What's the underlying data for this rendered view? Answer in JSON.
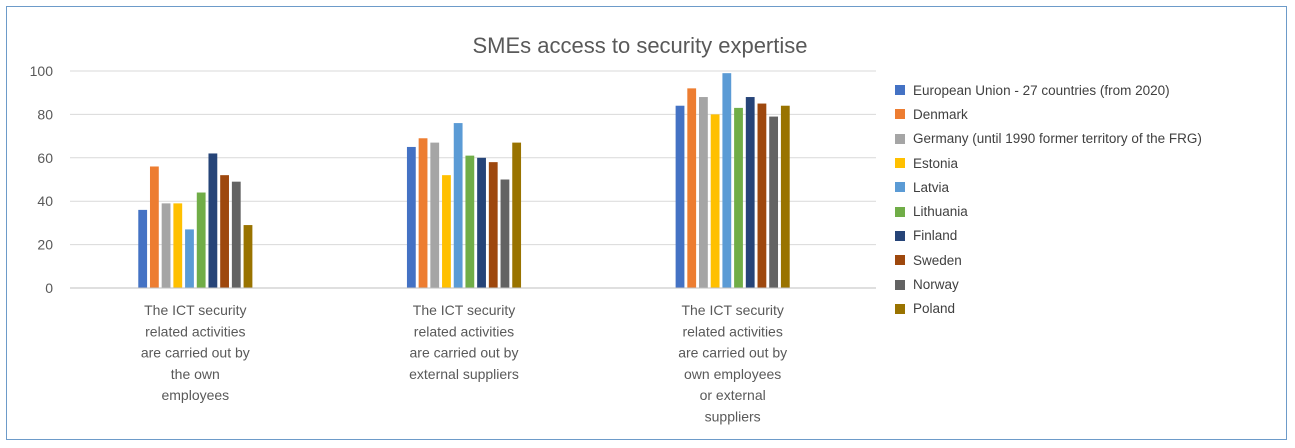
{
  "chart_data": {
    "type": "bar",
    "title": "SMEs access to security expertise",
    "xlabel": "",
    "ylabel": "",
    "ylim": [
      0,
      100
    ],
    "yticks": [
      0,
      20,
      40,
      60,
      80,
      100
    ],
    "grid": true,
    "legend_position": "right",
    "categories": [
      "The ICT security related activities are carried out by the own employees",
      "The ICT security related activities are carried out by external suppliers",
      "The ICT security related activities are carried out by own employees or external suppliers"
    ],
    "category_lines": [
      [
        "The ICT security",
        "related activities",
        "are carried out by",
        "the own",
        "employees"
      ],
      [
        "The ICT security",
        "related activities",
        "are carried out by",
        "external suppliers"
      ],
      [
        "The ICT security",
        "related activities",
        "are carried out by",
        "own employees",
        "or external",
        "suppliers"
      ]
    ],
    "series": [
      {
        "name": "European Union - 27 countries (from 2020)",
        "color": "#4472C4",
        "values": [
          36,
          65,
          84
        ]
      },
      {
        "name": "Denmark",
        "color": "#ED7D31",
        "values": [
          56,
          69,
          92
        ]
      },
      {
        "name": "Germany (until 1990 former territory of the FRG)",
        "color": "#A5A5A5",
        "values": [
          39,
          67,
          88
        ]
      },
      {
        "name": "Estonia",
        "color": "#FFC000",
        "values": [
          39,
          52,
          80
        ]
      },
      {
        "name": "Latvia",
        "color": "#5B9BD5",
        "values": [
          27,
          76,
          99
        ]
      },
      {
        "name": "Lithuania",
        "color": "#70AD47",
        "values": [
          44,
          61,
          83
        ]
      },
      {
        "name": "Finland",
        "color": "#264478",
        "values": [
          62,
          60,
          88
        ]
      },
      {
        "name": "Sweden",
        "color": "#9E480E",
        "values": [
          52,
          58,
          85
        ]
      },
      {
        "name": "Norway",
        "color": "#636363",
        "values": [
          49,
          50,
          79
        ]
      },
      {
        "name": "Poland",
        "color": "#997300",
        "values": [
          29,
          67,
          84
        ]
      }
    ]
  }
}
